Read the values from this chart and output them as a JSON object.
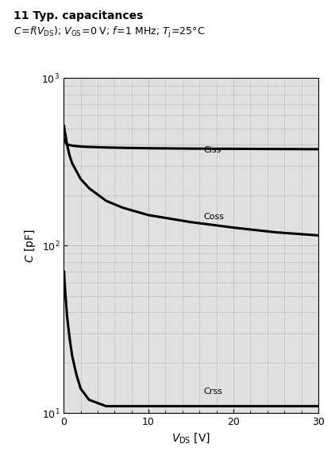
{
  "title": "11 Typ. capacitances",
  "xlim": [
    0,
    30
  ],
  "ylim": [
    10,
    1000
  ],
  "grid_color": "#c0c0c0",
  "plot_bg_color": "#e0e0e0",
  "line_color": "#000000",
  "line_width": 2.2,
  "Ciss_label": "Ciss",
  "Coss_label": "Coss",
  "Crss_label": "Crss",
  "Ciss_x": [
    0.05,
    0.3,
    0.5,
    1,
    2,
    3,
    5,
    7,
    10,
    15,
    20,
    25,
    30
  ],
  "Ciss_y": [
    430,
    405,
    400,
    395,
    390,
    388,
    385,
    383,
    381,
    379,
    378,
    377,
    376
  ],
  "Coss_x": [
    0.05,
    0.1,
    0.2,
    0.4,
    0.7,
    1,
    2,
    3,
    5,
    7,
    10,
    15,
    20,
    25,
    30
  ],
  "Coss_y": [
    520,
    490,
    460,
    400,
    345,
    310,
    250,
    220,
    185,
    168,
    152,
    138,
    128,
    120,
    115
  ],
  "Crss_x": [
    0.05,
    0.1,
    0.2,
    0.4,
    0.7,
    1,
    1.5,
    2,
    3,
    5,
    7,
    10,
    15,
    20,
    25,
    30
  ],
  "Crss_y": [
    70,
    62,
    52,
    38,
    28,
    22,
    17,
    14,
    12,
    11,
    11,
    11,
    11,
    11,
    11,
    11
  ]
}
